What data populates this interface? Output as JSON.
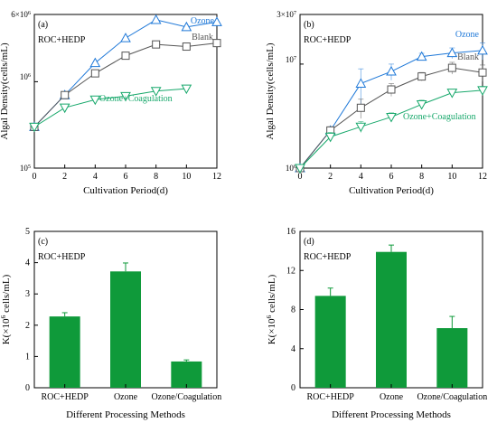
{
  "colors": {
    "ozone": "#1e78d8",
    "blank": "#555555",
    "coag": "#17a86b",
    "bar": "#0f9a3a",
    "axis": "#000000"
  },
  "chart_data": [
    {
      "id": "a",
      "type": "line",
      "panel_label": "(a)",
      "annotation": "ROC+HEDP",
      "xlabel": "Cultivation Period(d)",
      "ylabel": "Algal Density(cells/mL)",
      "yscale": "log",
      "xlim": [
        0,
        12
      ],
      "ylim": [
        100000,
        6000000
      ],
      "x_ticks": [
        0,
        2,
        4,
        6,
        8,
        10,
        12
      ],
      "y_tick_labels": [
        "10^5",
        "10^6",
        "6×10^6"
      ],
      "series": [
        {
          "name": "Ozone",
          "color_key": "ozone",
          "marker": "triangle-up",
          "x": [
            0,
            2,
            4,
            6,
            8,
            10,
            12
          ],
          "y": [
            300000,
            700000,
            1650000,
            3200000,
            5200000,
            4300000,
            4900000
          ]
        },
        {
          "name": "Blank",
          "color_key": "blank",
          "marker": "square",
          "x": [
            0,
            2,
            4,
            6,
            8,
            10,
            12
          ],
          "y": [
            300000,
            700000,
            1250000,
            2000000,
            2700000,
            2550000,
            2800000
          ]
        },
        {
          "name": "Ozone+Coagulation",
          "color_key": "coag",
          "marker": "triangle-down",
          "x": [
            0,
            2,
            4,
            6,
            8,
            10
          ],
          "y": [
            300000,
            500000,
            620000,
            680000,
            780000,
            830000
          ]
        }
      ]
    },
    {
      "id": "b",
      "type": "line",
      "panel_label": "(b)",
      "annotation": "ROC+HEDP",
      "xlabel": "Cultivation Period(d)",
      "ylabel": "Algal Density(cells/mL)",
      "yscale": "log",
      "xlim": [
        0,
        12
      ],
      "ylim": [
        1000000,
        30000000
      ],
      "x_ticks": [
        0,
        2,
        4,
        6,
        8,
        10,
        12
      ],
      "y_tick_labels": [
        "10^6",
        "10^7",
        "3×10^7"
      ],
      "series": [
        {
          "name": "Ozone",
          "color_key": "ozone",
          "marker": "triangle-up",
          "x": [
            0,
            2,
            4,
            6,
            8,
            10,
            12
          ],
          "y": [
            1000000,
            2300000,
            6500000,
            8500000,
            11800000,
            12800000,
            13500000
          ],
          "err": [
            0,
            150000,
            2500000,
            1500000,
            900000,
            1500000,
            2500000
          ]
        },
        {
          "name": "Blank",
          "color_key": "blank",
          "marker": "square",
          "x": [
            0,
            2,
            4,
            6,
            8,
            10,
            12
          ],
          "y": [
            1000000,
            2300000,
            3800000,
            5700000,
            7600000,
            9200000,
            8300000
          ],
          "err": [
            0,
            200000,
            800000,
            800000,
            700000,
            1200000,
            1500000
          ]
        },
        {
          "name": "Ozone+Coagulation",
          "color_key": "coag",
          "marker": "triangle-down",
          "x": [
            0,
            2,
            4,
            6,
            8,
            10,
            12
          ],
          "y": [
            1000000,
            2000000,
            2500000,
            3100000,
            4100000,
            5300000,
            5600000
          ],
          "err": [
            0,
            200000,
            300000,
            300000,
            400000,
            400000,
            500000
          ]
        }
      ]
    },
    {
      "id": "c",
      "type": "bar",
      "panel_label": "(c)",
      "annotation": "ROC+HEDP",
      "xlabel": "Different Processing Methods",
      "ylabel": "K(×10^6 cells/mL)",
      "ylim": [
        0,
        5
      ],
      "y_ticks": [
        0,
        1,
        2,
        3,
        4,
        5
      ],
      "categories": [
        "ROC+HEDP",
        "Ozone",
        "Ozone/Coagulation"
      ],
      "values": [
        2.28,
        3.72,
        0.84
      ],
      "errors": [
        0.12,
        0.27,
        0.05
      ]
    },
    {
      "id": "d",
      "type": "bar",
      "panel_label": "(d)",
      "annotation": "ROC+HEDP",
      "xlabel": "Different Processing Methods",
      "ylabel": "K(×10^6 cells/mL)",
      "ylim": [
        0,
        16
      ],
      "y_ticks": [
        0,
        4,
        8,
        12,
        16
      ],
      "categories": [
        "ROC+HEDP",
        "Ozone",
        "Ozone/Coagulation"
      ],
      "values": [
        9.4,
        13.9,
        6.1
      ],
      "errors": [
        0.8,
        0.7,
        1.2
      ]
    }
  ]
}
